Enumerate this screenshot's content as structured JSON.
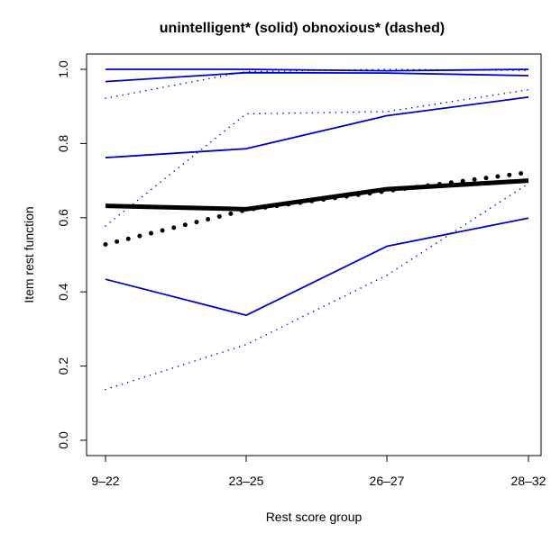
{
  "chart_data": {
    "type": "line",
    "title": "unintelligent* (solid) obnoxious* (dashed)",
    "xlabel": "Rest score group",
    "ylabel": "Item rest function",
    "categories": [
      "9–22",
      "23–25",
      "26–27",
      "28–32"
    ],
    "y_ticks": [
      0.0,
      0.2,
      0.4,
      0.6,
      0.8,
      1.0
    ],
    "y_tick_labels": [
      "0.0",
      "0.2",
      "0.4",
      "0.6",
      "0.8",
      "1.0"
    ],
    "ylim": [
      0,
      1
    ],
    "grid": false,
    "series": [
      {
        "values": [
          0.632,
          0.623,
          0.677,
          0.7
        ],
        "color": "#000000",
        "style": "solid",
        "width": "thick"
      },
      {
        "values": [
          0.528,
          0.621,
          0.672,
          0.722
        ],
        "color": "#000000",
        "style": "dotted",
        "width": "thick"
      },
      {
        "values": [
          0.434,
          0.337,
          0.523,
          0.599
        ],
        "color": "#0000cc",
        "style": "solid"
      },
      {
        "values": [
          0.762,
          0.786,
          0.875,
          0.925
        ],
        "color": "#0000cc",
        "style": "solid"
      },
      {
        "values": [
          0.967,
          0.991,
          0.99,
          0.983
        ],
        "color": "#0000cc",
        "style": "solid"
      },
      {
        "values": [
          1.0,
          1.0,
          0.996,
          1.0
        ],
        "color": "#0000cc",
        "style": "solid"
      },
      {
        "values": [
          0.137,
          0.258,
          0.445,
          0.692
        ],
        "color": "#0000cc",
        "style": "dotted"
      },
      {
        "values": [
          0.578,
          0.88,
          0.886,
          0.945
        ],
        "color": "#0000cc",
        "style": "dotted"
      },
      {
        "values": [
          0.922,
          0.994,
          1.0,
          0.997
        ],
        "color": "#0000cc",
        "style": "dotted"
      }
    ]
  }
}
